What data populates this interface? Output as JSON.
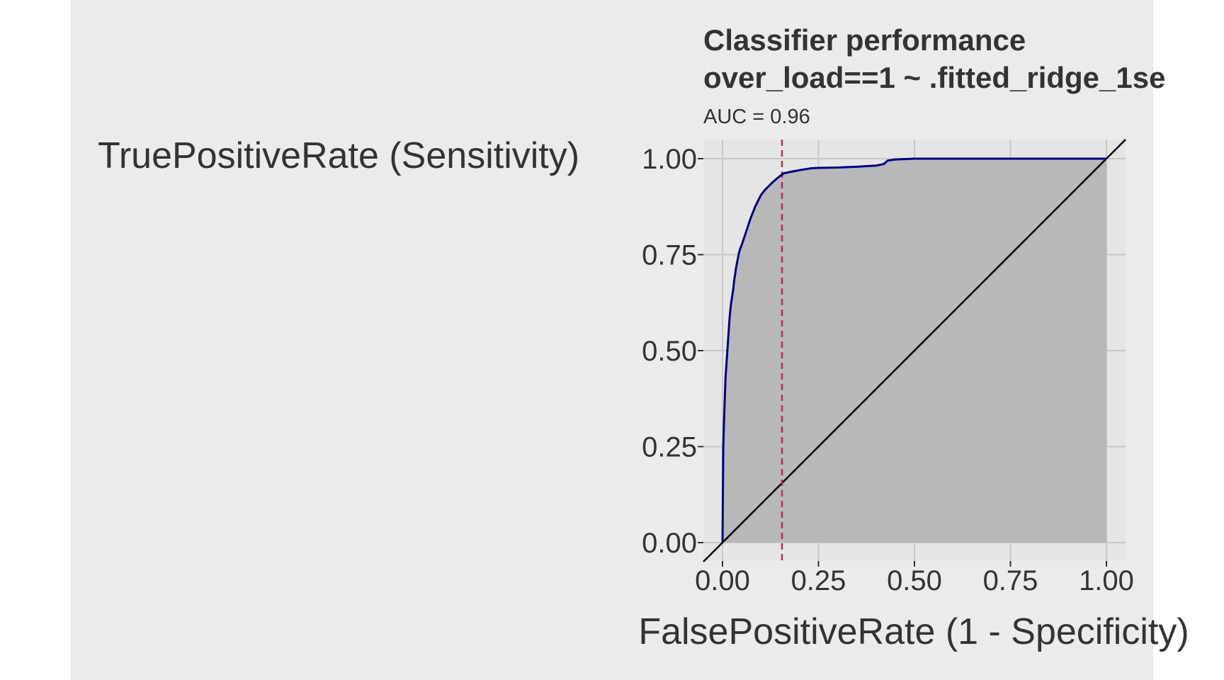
{
  "chart_data": {
    "type": "line",
    "title": "Classifier performance",
    "subtitle_formula": "over_load==1 ~ .fitted_ridge_1se",
    "annotation": "AUC = 0.96",
    "xlabel": "FalsePositiveRate (1 - Specificity)",
    "ylabel": "TruePositiveRate (Sensitivity)",
    "xlim": [
      0,
      1
    ],
    "ylim": [
      0,
      1
    ],
    "x_ticks": [
      0,
      0.25,
      0.5,
      0.75,
      1
    ],
    "y_ticks": [
      0,
      0.25,
      0.5,
      0.75,
      1
    ],
    "x_tick_labels": [
      "0.00",
      "0.25",
      "0.50",
      "0.75",
      "1.00"
    ],
    "y_tick_labels": [
      "0.00",
      "0.25",
      "0.50",
      "0.75",
      "1.00"
    ],
    "grid": true,
    "threshold_fpr": 0.155,
    "series": [
      {
        "role": "roc-curve",
        "color": "#000080",
        "fill": "#b8b8b8",
        "x": [
          0,
          0.002,
          0.004,
          0.006,
          0.008,
          0.01,
          0.012,
          0.014,
          0.016,
          0.018,
          0.02,
          0.022,
          0.025,
          0.028,
          0.03,
          0.033,
          0.036,
          0.04,
          0.043,
          0.046,
          0.05,
          0.055,
          0.06,
          0.065,
          0.07,
          0.075,
          0.08,
          0.085,
          0.09,
          0.095,
          0.1,
          0.11,
          0.12,
          0.13,
          0.14,
          0.15,
          0.16,
          0.18,
          0.2,
          0.23,
          0.25,
          0.3,
          0.35,
          0.4,
          0.42,
          0.43,
          0.45,
          0.48,
          0.5,
          0.6,
          0.7,
          0.8,
          0.9,
          1.0
        ],
        "y": [
          0,
          0.25,
          0.32,
          0.38,
          0.43,
          0.46,
          0.49,
          0.52,
          0.55,
          0.58,
          0.6,
          0.62,
          0.64,
          0.66,
          0.68,
          0.7,
          0.72,
          0.74,
          0.755,
          0.765,
          0.775,
          0.79,
          0.805,
          0.82,
          0.835,
          0.85,
          0.862,
          0.875,
          0.885,
          0.895,
          0.905,
          0.918,
          0.928,
          0.938,
          0.947,
          0.955,
          0.962,
          0.966,
          0.97,
          0.975,
          0.976,
          0.977,
          0.979,
          0.982,
          0.986,
          0.995,
          0.998,
          0.999,
          1.0,
          1.0,
          1.0,
          1.0,
          1.0,
          1.0
        ]
      },
      {
        "role": "diagonal-reference",
        "color": "#000000",
        "x": [
          0,
          1
        ],
        "y": [
          0,
          1
        ]
      }
    ],
    "colors": {
      "figure_background": "#ebebeb",
      "panel_background": "#e5e5e5",
      "grid": "#c8c8c8",
      "threshold_line": "#b03060",
      "text": "#333333"
    }
  }
}
